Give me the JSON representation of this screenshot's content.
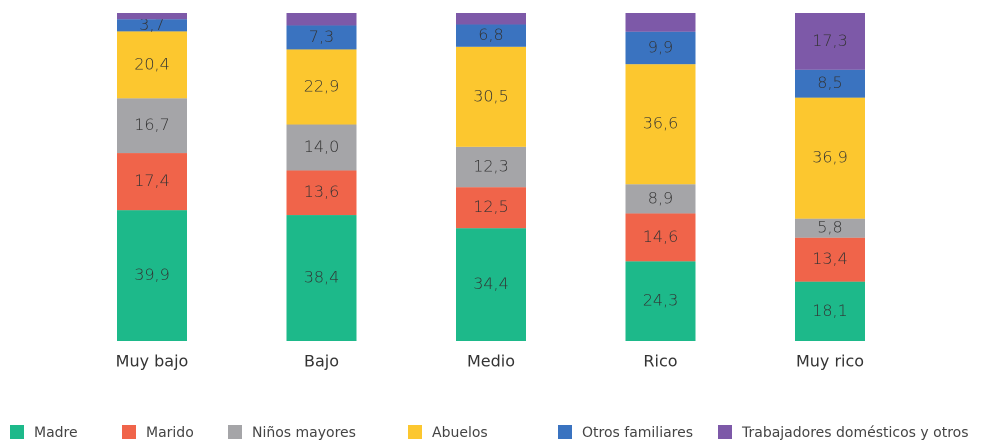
{
  "chart_data": {
    "type": "stacked-bar",
    "categories": [
      "Muy bajo",
      "Bajo",
      "Medio",
      "Rico",
      "Muy rico"
    ],
    "ylim": [
      0,
      100
    ],
    "series": [
      {
        "name": "Madre",
        "color": "#1db98a",
        "values": [
          39.9,
          38.4,
          34.4,
          24.3,
          18.1
        ],
        "value_labels": [
          "39,9",
          "38,4",
          "34,4",
          "24,3",
          "18,1"
        ]
      },
      {
        "name": "Marido",
        "color": "#f0644a",
        "values": [
          17.4,
          13.6,
          12.5,
          14.6,
          13.4
        ],
        "value_labels": [
          "17,4",
          "13,6",
          "12,5",
          "14,6",
          "13,4"
        ]
      },
      {
        "name": "Niños mayores",
        "color": "#a5a5a8",
        "values": [
          16.7,
          14.0,
          12.3,
          8.9,
          5.8
        ],
        "value_labels": [
          "16,7",
          "14,0",
          "12,3",
          "8,9",
          "5,8"
        ]
      },
      {
        "name": "Abuelos",
        "color": "#fcc72f",
        "values": [
          20.4,
          22.9,
          30.5,
          36.6,
          36.9
        ],
        "value_labels": [
          "20,4",
          "22,9",
          "30,5",
          "36,6",
          "36,9"
        ]
      },
      {
        "name": "Otros familiares",
        "color": "#3a73c0",
        "values": [
          3.7,
          7.3,
          6.8,
          9.9,
          8.5
        ],
        "value_labels": [
          "3,7",
          "7,3",
          "6,8",
          "9,9",
          "8,5"
        ]
      },
      {
        "name": "Trabajadores domésticos y otros",
        "color": "#7d59a8",
        "values": [
          1.9,
          3.8,
          3.5,
          5.7,
          17.3
        ],
        "value_labels": [
          null,
          null,
          null,
          null,
          "17,3"
        ]
      }
    ]
  }
}
